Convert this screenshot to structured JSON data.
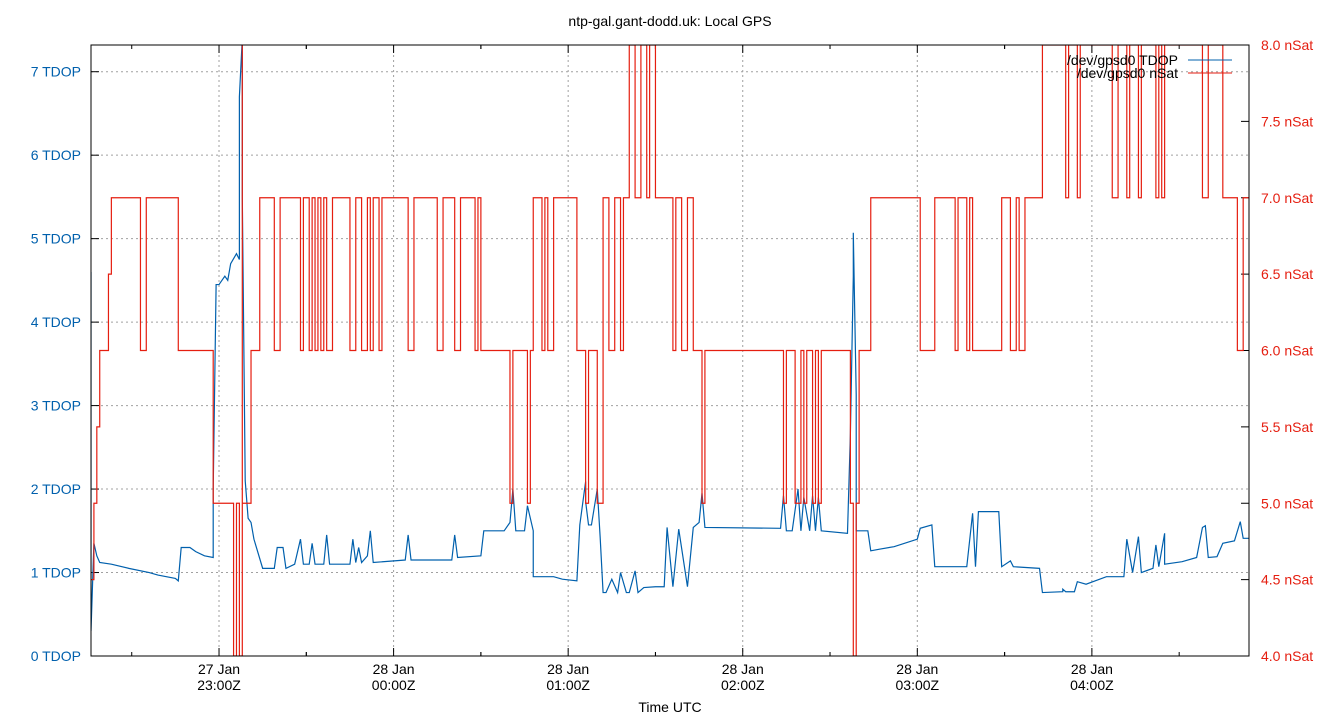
{
  "chart_data": {
    "type": "line",
    "title": "ntp-gal.gant-dodd.uk: Local GPS",
    "xlabel": "Time UTC",
    "x_range": [
      "22:16",
      "04:54"
    ],
    "x_ticks": [
      {
        "date": "27 Jan",
        "time": "23:00Z"
      },
      {
        "date": "28 Jan",
        "time": "00:00Z"
      },
      {
        "date": "28 Jan",
        "time": "01:00Z"
      },
      {
        "date": "28 Jan",
        "time": "02:00Z"
      },
      {
        "date": "28 Jan",
        "time": "03:00Z"
      },
      {
        "date": "28 Jan",
        "time": "04:00Z"
      }
    ],
    "y_left": {
      "range": [
        0,
        7.32
      ],
      "ticks": [
        "0 TDOP",
        "1 TDOP",
        "2 TDOP",
        "3 TDOP",
        "4 TDOP",
        "5 TDOP",
        "6 TDOP",
        "7 TDOP"
      ],
      "color": "#0060ad"
    },
    "y_right": {
      "range": [
        4.0,
        8.0
      ],
      "ticks": [
        "4.0 nSat",
        "4.5 nSat",
        "5.0 nSat",
        "5.5 nSat",
        "6.0 nSat",
        "6.5 nSat",
        "7.0 nSat",
        "7.5 nSat",
        "8.0 nSat"
      ],
      "color": "#e51e10"
    },
    "grid": true,
    "legend_position": "top-right",
    "series": [
      {
        "name": "/dev/gpsd0 TDOP",
        "axis": "left",
        "color": "#0060ad",
        "points": [
          [
            "22:16",
            4.6
          ],
          [
            "22:16",
            0.3
          ],
          [
            "22:17",
            1.35
          ],
          [
            "22:18",
            1.2
          ],
          [
            "22:19",
            1.12
          ],
          [
            "22:23",
            1.1
          ],
          [
            "22:29",
            1.05
          ],
          [
            "22:36",
            1.0
          ],
          [
            "22:39",
            0.97
          ],
          [
            "22:45",
            0.93
          ],
          [
            "22:46",
            0.9
          ],
          [
            "22:47",
            1.3
          ],
          [
            "22:50",
            1.3
          ],
          [
            "22:52",
            1.25
          ],
          [
            "22:55",
            1.2
          ],
          [
            "22:58",
            1.18
          ],
          [
            "22:58",
            2.0
          ],
          [
            "22:59",
            4.45
          ],
          [
            "23:00",
            4.45
          ],
          [
            "23:02",
            4.55
          ],
          [
            "23:03",
            4.5
          ],
          [
            "23:04",
            4.7
          ],
          [
            "23:06",
            4.82
          ],
          [
            "23:07",
            4.75
          ],
          [
            "23:07",
            6.7
          ],
          [
            "23:08",
            7.4
          ],
          [
            "23:08",
            5.5
          ],
          [
            "23:09",
            2.1
          ],
          [
            "23:10",
            1.65
          ],
          [
            "23:11",
            1.6
          ],
          [
            "23:12",
            1.4
          ],
          [
            "23:15",
            1.05
          ],
          [
            "23:19",
            1.05
          ],
          [
            "23:20",
            1.3
          ],
          [
            "23:22",
            1.3
          ],
          [
            "23:23",
            1.05
          ],
          [
            "23:26",
            1.1
          ],
          [
            "23:28",
            1.4
          ],
          [
            "23:29",
            1.1
          ],
          [
            "23:31",
            1.1
          ],
          [
            "23:32",
            1.35
          ],
          [
            "23:33",
            1.1
          ],
          [
            "23:36",
            1.1
          ],
          [
            "23:37",
            1.45
          ],
          [
            "23:38",
            1.1
          ],
          [
            "23:45",
            1.1
          ],
          [
            "23:46",
            1.4
          ],
          [
            "23:47",
            1.12
          ],
          [
            "23:48",
            1.3
          ],
          [
            "23:49",
            1.12
          ],
          [
            "23:51",
            1.2
          ],
          [
            "23:52",
            1.5
          ],
          [
            "23:53",
            1.12
          ],
          [
            "00:04",
            1.15
          ],
          [
            "00:05",
            1.45
          ],
          [
            "00:06",
            1.15
          ],
          [
            "00:20",
            1.15
          ],
          [
            "00:21",
            1.45
          ],
          [
            "00:22",
            1.18
          ],
          [
            "00:30",
            1.2
          ],
          [
            "00:31",
            1.5
          ],
          [
            "00:38",
            1.5
          ],
          [
            "00:40",
            1.6
          ],
          [
            "00:41",
            2.0
          ],
          [
            "00:42",
            1.5
          ],
          [
            "00:45",
            1.5
          ],
          [
            "00:46",
            1.8
          ],
          [
            "00:48",
            1.5
          ],
          [
            "00:48",
            0.95
          ],
          [
            "00:55",
            0.95
          ],
          [
            "00:58",
            0.92
          ],
          [
            "01:03",
            0.9
          ],
          [
            "01:04",
            1.57
          ],
          [
            "01:06",
            2.09
          ],
          [
            "01:06",
            1.85
          ],
          [
            "01:07",
            1.57
          ],
          [
            "01:08",
            1.57
          ],
          [
            "01:10",
            2.0
          ],
          [
            "01:11",
            1.42
          ],
          [
            "01:12",
            0.76
          ],
          [
            "01:13",
            0.76
          ],
          [
            "01:15",
            0.92
          ],
          [
            "01:17",
            0.76
          ],
          [
            "01:18",
            1.0
          ],
          [
            "01:20",
            0.76
          ],
          [
            "01:21",
            0.76
          ],
          [
            "01:23",
            1.02
          ],
          [
            "01:24",
            0.76
          ],
          [
            "01:26",
            0.82
          ],
          [
            "01:30",
            0.83
          ],
          [
            "01:33",
            0.83
          ],
          [
            "01:34",
            1.54
          ],
          [
            "01:36",
            0.83
          ],
          [
            "01:38",
            1.52
          ],
          [
            "01:41",
            0.83
          ],
          [
            "01:43",
            1.54
          ],
          [
            "01:45",
            1.6
          ],
          [
            "01:46",
            1.95
          ],
          [
            "01:47",
            1.54
          ],
          [
            "02:13",
            1.53
          ],
          [
            "02:14",
            1.92
          ],
          [
            "02:15",
            1.5
          ],
          [
            "02:17",
            1.5
          ],
          [
            "02:19",
            2.0
          ],
          [
            "02:20",
            1.5
          ],
          [
            "02:21",
            1.9
          ],
          [
            "02:23",
            1.5
          ],
          [
            "02:24",
            1.92
          ],
          [
            "02:25",
            1.5
          ],
          [
            "02:26",
            1.9
          ],
          [
            "02:27",
            1.5
          ],
          [
            "02:36",
            1.47
          ],
          [
            "02:37",
            2.66
          ],
          [
            "02:38",
            4.55
          ],
          [
            "02:38",
            5.07
          ],
          [
            "02:39",
            3.13
          ],
          [
            "02:39",
            1.5
          ],
          [
            "02:43",
            1.5
          ],
          [
            "02:44",
            1.26
          ],
          [
            "02:47",
            1.28
          ],
          [
            "02:52",
            1.31
          ],
          [
            "03:00",
            1.4
          ],
          [
            "03:01",
            1.53
          ],
          [
            "03:05",
            1.57
          ],
          [
            "03:06",
            1.07
          ],
          [
            "03:17",
            1.07
          ],
          [
            "03:19",
            1.71
          ],
          [
            "03:20",
            1.07
          ],
          [
            "03:21",
            1.73
          ],
          [
            "03:28",
            1.73
          ],
          [
            "03:29",
            1.07
          ],
          [
            "03:32",
            1.14
          ],
          [
            "03:33",
            1.07
          ],
          [
            "03:42",
            1.05
          ],
          [
            "03:43",
            0.76
          ],
          [
            "03:50",
            0.77
          ],
          [
            "03:50",
            0.8
          ],
          [
            "03:51",
            0.77
          ],
          [
            "03:54",
            0.77
          ],
          [
            "03:55",
            0.89
          ],
          [
            "03:58",
            0.86
          ],
          [
            "04:05",
            0.95
          ],
          [
            "04:11",
            0.95
          ],
          [
            "04:12",
            1.4
          ],
          [
            "04:14",
            1.0
          ],
          [
            "04:16",
            1.43
          ],
          [
            "04:17",
            1.0
          ],
          [
            "04:21",
            1.05
          ],
          [
            "04:22",
            1.33
          ],
          [
            "04:23",
            1.07
          ],
          [
            "04:25",
            1.47
          ],
          [
            "04:25",
            1.1
          ],
          [
            "04:31",
            1.13
          ],
          [
            "04:36",
            1.18
          ],
          [
            "04:38",
            1.54
          ],
          [
            "04:39",
            1.56
          ],
          [
            "04:40",
            1.18
          ],
          [
            "04:43",
            1.19
          ],
          [
            "04:45",
            1.35
          ],
          [
            "04:49",
            1.38
          ],
          [
            "04:51",
            1.61
          ],
          [
            "04:52",
            1.41
          ],
          [
            "04:54",
            1.41
          ]
        ]
      },
      {
        "name": "/dev/gpsd0 nSat",
        "axis": "right",
        "color": "#e51e10",
        "points": [
          [
            "22:16",
            4.5
          ],
          [
            "22:17",
            5.0
          ],
          [
            "22:18",
            5.5
          ],
          [
            "22:19",
            6.0
          ],
          [
            "22:22",
            6.5
          ],
          [
            "22:23",
            7.0
          ],
          [
            "22:33",
            6.0
          ],
          [
            "22:35",
            7.0
          ],
          [
            "22:46",
            6.0
          ],
          [
            "22:58",
            5.0
          ],
          [
            "23:05",
            4.0
          ],
          [
            "23:06",
            5.0
          ],
          [
            "23:07",
            4.0
          ],
          [
            "23:08",
            8.0
          ],
          [
            "23:08",
            5.0
          ],
          [
            "23:11",
            6.0
          ],
          [
            "23:14",
            7.0
          ],
          [
            "23:19",
            6.0
          ],
          [
            "23:21",
            7.0
          ],
          [
            "23:28",
            6.0
          ],
          [
            "23:29",
            7.0
          ],
          [
            "23:31",
            6.0
          ],
          [
            "23:32",
            7.0
          ],
          [
            "23:33",
            6.0
          ],
          [
            "23:34",
            7.0
          ],
          [
            "23:35",
            6.0
          ],
          [
            "23:36",
            7.0
          ],
          [
            "23:37",
            6.0
          ],
          [
            "23:39",
            7.0
          ],
          [
            "23:45",
            6.0
          ],
          [
            "23:47",
            7.0
          ],
          [
            "23:49",
            6.0
          ],
          [
            "23:51",
            7.0
          ],
          [
            "23:52",
            6.0
          ],
          [
            "23:53",
            7.0
          ],
          [
            "23:55",
            6.0
          ],
          [
            "23:56",
            7.0
          ],
          [
            "00:05",
            6.0
          ],
          [
            "00:07",
            7.0
          ],
          [
            "00:15",
            6.0
          ],
          [
            "00:17",
            7.0
          ],
          [
            "00:21",
            6.0
          ],
          [
            "00:23",
            7.0
          ],
          [
            "00:28",
            6.0
          ],
          [
            "00:29",
            7.0
          ],
          [
            "00:30",
            6.0
          ],
          [
            "00:40",
            5.0
          ],
          [
            "00:41",
            6.0
          ],
          [
            "00:46",
            5.0
          ],
          [
            "00:47",
            6.0
          ],
          [
            "00:48",
            7.0
          ],
          [
            "00:51",
            6.0
          ],
          [
            "00:52",
            7.0
          ],
          [
            "00:53",
            6.0
          ],
          [
            "00:55",
            7.0
          ],
          [
            "01:03",
            6.0
          ],
          [
            "01:06",
            5.0
          ],
          [
            "01:07",
            6.0
          ],
          [
            "01:10",
            5.0
          ],
          [
            "01:12",
            7.0
          ],
          [
            "01:14",
            6.0
          ],
          [
            "01:16",
            7.0
          ],
          [
            "01:18",
            6.0
          ],
          [
            "01:19",
            7.0
          ],
          [
            "01:21",
            8.0
          ],
          [
            "01:23",
            7.0
          ],
          [
            "01:25",
            8.0
          ],
          [
            "01:27",
            7.0
          ],
          [
            "01:28",
            8.0
          ],
          [
            "01:30",
            7.0
          ],
          [
            "01:36",
            6.0
          ],
          [
            "01:37",
            7.0
          ],
          [
            "01:39",
            6.0
          ],
          [
            "01:41",
            7.0
          ],
          [
            "01:43",
            6.0
          ],
          [
            "01:46",
            5.0
          ],
          [
            "01:47",
            6.0
          ],
          [
            "02:14",
            5.0
          ],
          [
            "02:15",
            6.0
          ],
          [
            "02:18",
            5.0
          ],
          [
            "02:20",
            6.0
          ],
          [
            "02:21",
            5.0
          ],
          [
            "02:22",
            6.0
          ],
          [
            "02:24",
            5.0
          ],
          [
            "02:25",
            6.0
          ],
          [
            "02:26",
            5.0
          ],
          [
            "02:27",
            6.0
          ],
          [
            "02:37",
            5.0
          ],
          [
            "02:38",
            4.0
          ],
          [
            "02:39",
            5.0
          ],
          [
            "02:40",
            6.0
          ],
          [
            "02:44",
            7.0
          ],
          [
            "03:01",
            6.0
          ],
          [
            "03:06",
            7.0
          ],
          [
            "03:13",
            6.0
          ],
          [
            "03:14",
            7.0
          ],
          [
            "03:17",
            6.0
          ],
          [
            "03:18",
            7.0
          ],
          [
            "03:19",
            6.0
          ],
          [
            "03:29",
            7.0
          ],
          [
            "03:32",
            6.0
          ],
          [
            "03:34",
            7.0
          ],
          [
            "03:35",
            6.0
          ],
          [
            "03:37",
            7.0
          ],
          [
            "03:43",
            8.0
          ],
          [
            "03:51",
            7.0
          ],
          [
            "03:52",
            8.0
          ],
          [
            "03:55",
            7.0
          ],
          [
            "03:56",
            8.0
          ],
          [
            "04:07",
            7.0
          ],
          [
            "04:09",
            8.0
          ],
          [
            "04:12",
            7.0
          ],
          [
            "04:13",
            8.0
          ],
          [
            "04:16",
            7.0
          ],
          [
            "04:17",
            8.0
          ],
          [
            "04:22",
            7.0
          ],
          [
            "04:23",
            8.0
          ],
          [
            "04:24",
            7.0
          ],
          [
            "04:25",
            8.0
          ],
          [
            "04:38",
            7.0
          ],
          [
            "04:40",
            8.0
          ],
          [
            "04:45",
            7.0
          ],
          [
            "04:50",
            6.0
          ],
          [
            "04:52",
            7.0
          ],
          [
            "04:54",
            7.0
          ]
        ]
      }
    ]
  }
}
